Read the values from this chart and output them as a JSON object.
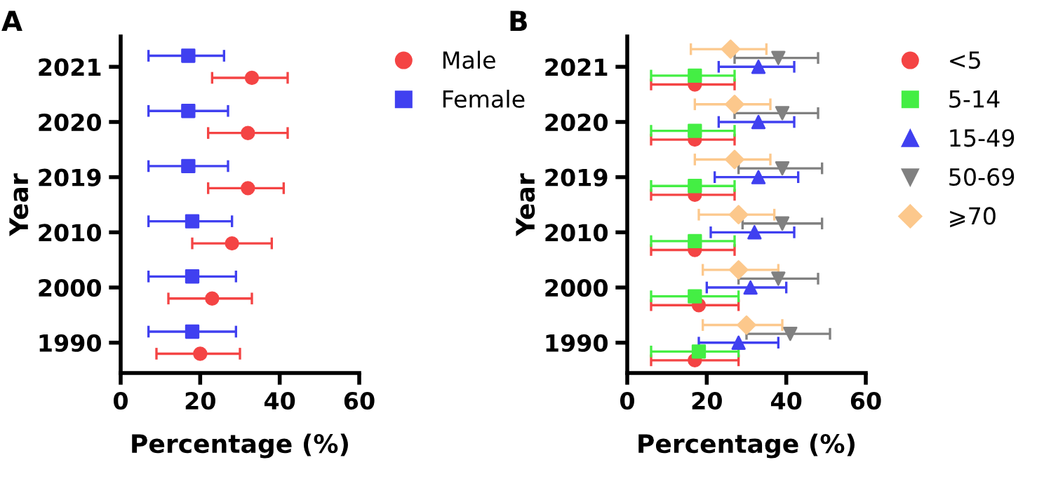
{
  "chart_data": [
    {
      "type": "scatter",
      "orientation": "horizontal",
      "ylabel": "Year",
      "xlabel": "Percentage (%)",
      "annotations": [
        "A"
      ],
      "categories": [
        "2021",
        "2020",
        "2019",
        "2010",
        "2000",
        "1990"
      ],
      "xlim": [
        0,
        60
      ],
      "xticks": [
        0,
        20,
        40,
        60
      ],
      "grid": false,
      "legend": "right",
      "series": [
        {
          "name": "Male",
          "color": "#f44444",
          "marker": "circle",
          "values": [
            33,
            32,
            32,
            28,
            23,
            20
          ],
          "errors": [
            [
              23,
              42
            ],
            [
              22,
              42
            ],
            [
              22,
              41
            ],
            [
              18,
              38
            ],
            [
              12,
              33
            ],
            [
              9,
              30
            ]
          ]
        },
        {
          "name": "Female",
          "color": "#4040f0",
          "marker": "square",
          "values": [
            17,
            17,
            17,
            18,
            18,
            18
          ],
          "errors": [
            [
              7,
              26
            ],
            [
              7,
              27
            ],
            [
              7,
              27
            ],
            [
              7,
              28
            ],
            [
              7,
              29
            ],
            [
              7,
              29
            ]
          ]
        }
      ]
    },
    {
      "type": "scatter",
      "orientation": "horizontal",
      "ylabel": "Year",
      "xlabel": "Percentage (%)",
      "annotations": [
        "B"
      ],
      "categories": [
        "2021",
        "2020",
        "2019",
        "2010",
        "2000",
        "1990"
      ],
      "xlim": [
        0,
        60
      ],
      "xticks": [
        0,
        20,
        40,
        60
      ],
      "grid": false,
      "legend": "right",
      "series": [
        {
          "name": "<5",
          "color": "#f44444",
          "marker": "circle",
          "values": [
            17,
            17,
            17,
            17,
            18,
            17
          ],
          "errors": [
            [
              6,
              27
            ],
            [
              6,
              27
            ],
            [
              6,
              27
            ],
            [
              6,
              27
            ],
            [
              6,
              28
            ],
            [
              6,
              28
            ]
          ]
        },
        {
          "name": "5-14",
          "color": "#44ee44",
          "marker": "square",
          "values": [
            17,
            17,
            17,
            17,
            17,
            18
          ],
          "errors": [
            [
              6,
              27
            ],
            [
              6,
              27
            ],
            [
              6,
              27
            ],
            [
              6,
              27
            ],
            [
              6,
              28
            ],
            [
              6,
              28
            ]
          ]
        },
        {
          "name": "15-49",
          "color": "#4040f0",
          "marker": "triangle",
          "values": [
            33,
            33,
            33,
            32,
            31,
            28
          ],
          "errors": [
            [
              23,
              42
            ],
            [
              23,
              42
            ],
            [
              22,
              43
            ],
            [
              21,
              42
            ],
            [
              20,
              40
            ],
            [
              18,
              38
            ]
          ]
        },
        {
          "name": "50-69",
          "color": "#808080",
          "marker": "triangle_down",
          "values": [
            38,
            39,
            39,
            39,
            38,
            41
          ],
          "errors": [
            [
              27,
              48
            ],
            [
              27,
              48
            ],
            [
              28,
              49
            ],
            [
              29,
              49
            ],
            [
              28,
              48
            ],
            [
              30,
              51
            ]
          ]
        },
        {
          "name": "⩾70",
          "color": "#fcc88c",
          "marker": "diamond",
          "values": [
            26,
            27,
            27,
            28,
            28,
            30
          ],
          "errors": [
            [
              16,
              35
            ],
            [
              17,
              36
            ],
            [
              17,
              36
            ],
            [
              18,
              37
            ],
            [
              19,
              38
            ],
            [
              19,
              39
            ]
          ]
        }
      ]
    }
  ]
}
